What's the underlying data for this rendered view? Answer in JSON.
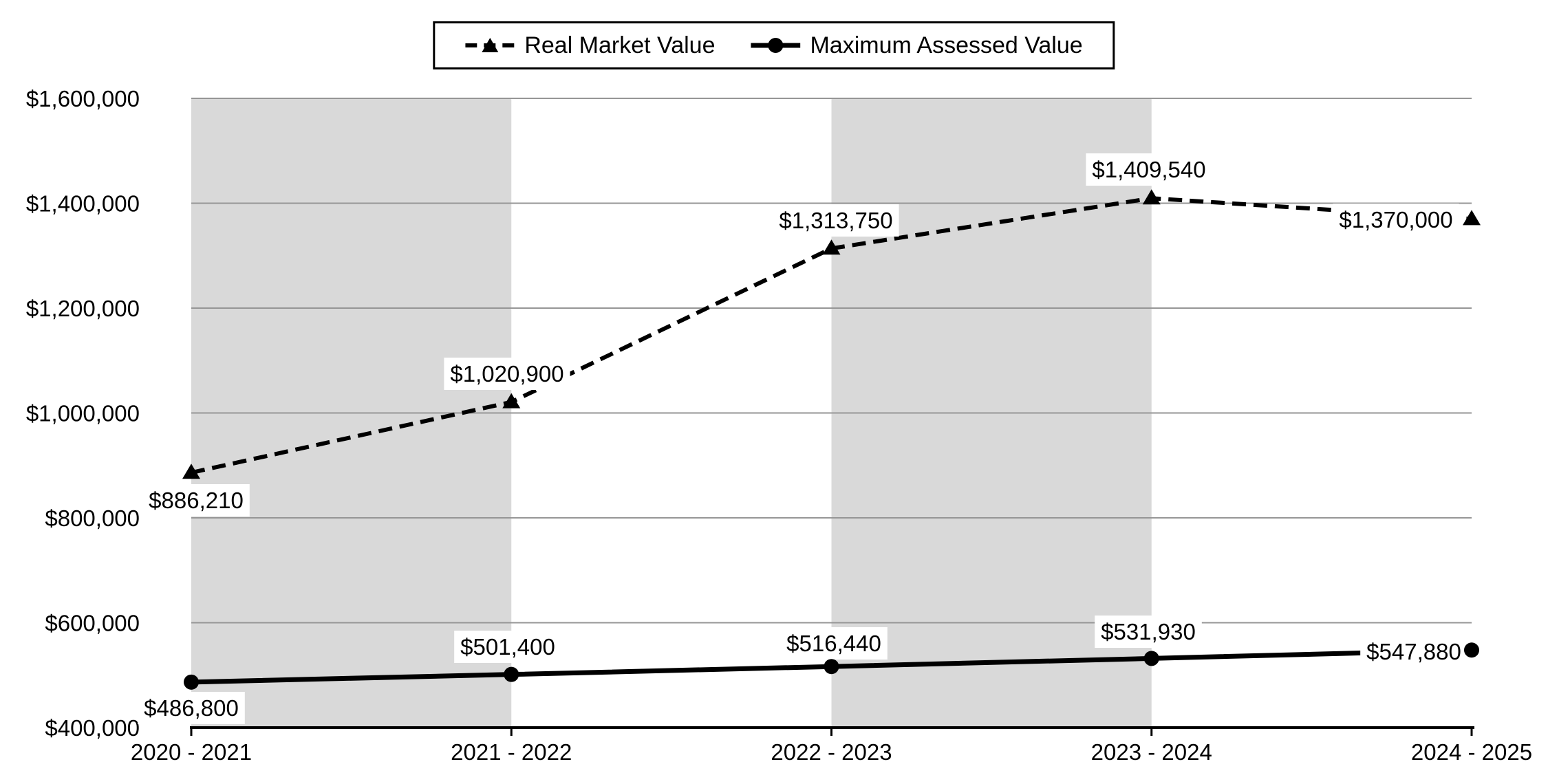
{
  "chart_data": {
    "type": "line",
    "title": "",
    "categories": [
      "2020 - 2021",
      "2021 - 2022",
      "2022 - 2023",
      "2023 - 2024",
      "2024 - 2025"
    ],
    "series": [
      {
        "name": "Real Market Value",
        "values": [
          886210,
          1020900,
          1313750,
          1409540,
          1370000
        ],
        "line_style": "dashed",
        "marker": "triangle",
        "color": "#000000"
      },
      {
        "name": "Maximum Assessed Value",
        "values": [
          486800,
          501400,
          516440,
          531930,
          547880
        ],
        "line_style": "solid",
        "marker": "circle",
        "color": "#000000"
      }
    ],
    "data_labels": [
      [
        "$886,210",
        "$1,020,900",
        "$1,313,750",
        "$1,409,540",
        "$1,370,000"
      ],
      [
        "$486,800",
        "$501,400",
        "$516,440",
        "$531,930",
        "$547,880"
      ]
    ],
    "ytick_labels": [
      "$400,000",
      "$600,000",
      "$800,000",
      "$1,000,000",
      "$1,200,000",
      "$1,400,000",
      "$1,600,000"
    ],
    "ylim": [
      400000,
      1600000
    ],
    "ytick_step": 200000,
    "value_prefix": "$",
    "grid": "horizontal",
    "legend_position": "top-center",
    "plot_bands": "alternating category bands (1st and 3rd intervals shaded)",
    "colors": {
      "line": "#000000",
      "band": "#d9d9d9",
      "gridline": "#969696",
      "axis": "#000000",
      "text": "#000000",
      "background": "#ffffff",
      "label_background": "#ffffff"
    }
  }
}
